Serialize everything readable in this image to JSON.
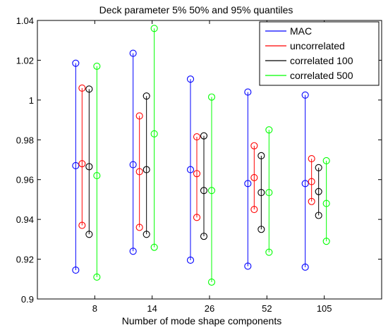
{
  "chart_data": {
    "type": "scatter",
    "title": "Deck parameter 5% 50% and 95% quantiles",
    "xlabel": "Number of mode shape components",
    "ylabel": "",
    "categories": [
      "8",
      "14",
      "26",
      "52",
      "105"
    ],
    "ylim": [
      0.9,
      1.04
    ],
    "yticks": [
      "0.9",
      "0.92",
      "0.94",
      "0.96",
      "0.98",
      "1",
      "1.02",
      "1.04"
    ],
    "grid": false,
    "legend_position": "top-right",
    "series": [
      {
        "name": "MAC",
        "color": "#0000ff",
        "q05": [
          0.9145,
          0.924,
          0.9195,
          0.9165,
          0.916
        ],
        "q50": [
          0.967,
          0.9675,
          0.965,
          0.958,
          0.958
        ],
        "q95": [
          1.0185,
          1.0235,
          1.0105,
          1.004,
          1.0025
        ]
      },
      {
        "name": "uncorrelated",
        "color": "#ff0000",
        "q05": [
          0.937,
          0.936,
          0.941,
          0.945,
          0.949
        ],
        "q50": [
          0.968,
          0.964,
          0.963,
          0.961,
          0.959
        ],
        "q95": [
          1.006,
          0.992,
          0.9815,
          0.977,
          0.9705
        ]
      },
      {
        "name": "correlated 100",
        "color": "#000000",
        "q05": [
          0.9325,
          0.9325,
          0.9315,
          0.935,
          0.942
        ],
        "q50": [
          0.9665,
          0.965,
          0.9545,
          0.9535,
          0.954
        ],
        "q95": [
          1.0055,
          1.002,
          0.982,
          0.972,
          0.966
        ]
      },
      {
        "name": "correlated 500",
        "color": "#00ff00",
        "q05": [
          0.911,
          0.926,
          0.9085,
          0.9235,
          0.929
        ],
        "q50": [
          0.962,
          0.983,
          0.9545,
          0.9535,
          0.948
        ],
        "q95": [
          1.017,
          1.036,
          1.0015,
          0.985,
          0.9695
        ]
      }
    ]
  }
}
